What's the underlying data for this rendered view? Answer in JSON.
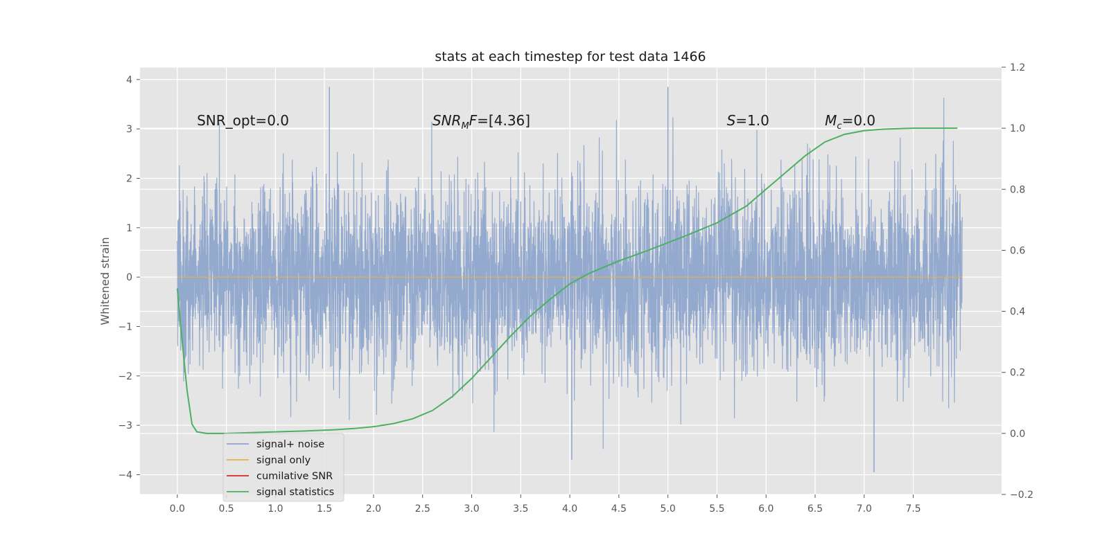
{
  "chart_data": {
    "type": "line",
    "title": "stats at each timestep for test data 1466",
    "ylabel": "Whitened strain",
    "xlim": [
      -0.38,
      8.4
    ],
    "ylim": [
      -4.4,
      4.25
    ],
    "y2lim": [
      -0.2,
      1.2
    ],
    "x_ticks": [
      0.0,
      0.5,
      1.0,
      1.5,
      2.0,
      2.5,
      3.0,
      3.5,
      4.0,
      4.5,
      5.0,
      5.5,
      6.0,
      6.5,
      7.0,
      7.5
    ],
    "x_tick_labels": [
      "0.0",
      "0.5",
      "1.0",
      "1.5",
      "2.0",
      "2.5",
      "3.0",
      "3.5",
      "4.0",
      "4.5",
      "5.0",
      "5.5",
      "6.0",
      "6.5",
      "7.0",
      "7.5"
    ],
    "y_ticks": [
      -4,
      -3,
      -2,
      -1,
      0,
      1,
      2,
      3,
      4
    ],
    "y_tick_labels": [
      "−4",
      "−3",
      "−2",
      "−1",
      "0",
      "1",
      "2",
      "3",
      "4"
    ],
    "y2_ticks": [
      -0.2,
      0.0,
      0.2,
      0.4,
      0.6,
      0.8,
      1.0,
      1.2
    ],
    "y2_tick_labels": [
      "−0.2",
      "0.0",
      "0.2",
      "0.4",
      "0.6",
      "0.8",
      "1.0",
      "1.2"
    ],
    "grid": true,
    "legend_position": "lower-left",
    "annotations": [
      {
        "x": 0.2,
        "y": 3.1,
        "parts": [
          {
            "text": "SNR_opt=0.0"
          }
        ]
      },
      {
        "x": 2.6,
        "y": 3.1,
        "parts": [
          {
            "text": "SNR",
            "italic": true
          },
          {
            "text": "M",
            "italic": true,
            "sub": true
          },
          {
            "text": "F",
            "italic": true
          },
          {
            "text": "=[4.36]"
          }
        ]
      },
      {
        "x": 5.6,
        "y": 3.1,
        "parts": [
          {
            "text": "S",
            "italic": true
          },
          {
            "text": "=1.0"
          }
        ]
      },
      {
        "x": 6.6,
        "y": 3.1,
        "parts": [
          {
            "text": "M",
            "italic": true
          },
          {
            "text": "c",
            "italic": true,
            "sub": true
          },
          {
            "text": "=0.0"
          }
        ]
      }
    ],
    "series": [
      {
        "name": "signal+ noise",
        "color": "#8fa5cc",
        "axis": "left",
        "kind": "noise",
        "x_start": 0.0,
        "x_end": 8.0,
        "amplitude_typical": 1.8,
        "peak_values": [
          3.85,
          3.85,
          -3.95,
          -3.7
        ]
      },
      {
        "name": "signal only",
        "color": "#e6b04a",
        "axis": "left",
        "x": [
          0.0,
          8.0
        ],
        "y": [
          0.0,
          0.0
        ]
      },
      {
        "name": "cumilative SNR",
        "color": "#d62728",
        "axis": "left",
        "x": [],
        "y": []
      },
      {
        "name": "signal statistics",
        "color": "#4caf62",
        "axis": "right",
        "x": [
          0.0,
          0.05,
          0.1,
          0.15,
          0.2,
          0.3,
          0.5,
          0.8,
          1.0,
          1.3,
          1.6,
          1.8,
          2.0,
          2.2,
          2.4,
          2.6,
          2.8,
          3.0,
          3.2,
          3.4,
          3.6,
          3.8,
          4.0,
          4.2,
          4.5,
          4.8,
          5.0,
          5.2,
          5.5,
          5.8,
          6.0,
          6.2,
          6.4,
          6.6,
          6.8,
          7.0,
          7.2,
          7.5,
          7.95
        ],
        "y": [
          0.475,
          0.3,
          0.14,
          0.03,
          0.005,
          0.0,
          0.0,
          0.003,
          0.005,
          0.008,
          0.012,
          0.016,
          0.022,
          0.032,
          0.048,
          0.075,
          0.12,
          0.18,
          0.25,
          0.32,
          0.385,
          0.44,
          0.49,
          0.525,
          0.565,
          0.6,
          0.625,
          0.65,
          0.69,
          0.745,
          0.8,
          0.855,
          0.91,
          0.955,
          0.98,
          0.992,
          0.997,
          1.0,
          1.0
        ]
      }
    ]
  }
}
